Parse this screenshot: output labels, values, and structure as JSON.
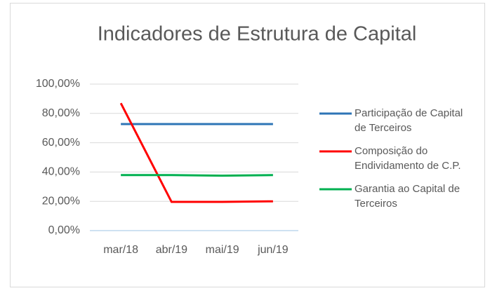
{
  "chart_data": {
    "type": "line",
    "title": "Indicadores de Estrutura de Capital",
    "categories": [
      "mar/18",
      "abr/19",
      "mai/19",
      "jun/19"
    ],
    "series": [
      {
        "name": "Participação de Capital de Terceiros",
        "color": "#2e75b6",
        "values": [
          72.7,
          72.7,
          72.7,
          72.7
        ]
      },
      {
        "name": "Composição do Endividamento de C.P.",
        "color": "#ff0000",
        "values": [
          87.0,
          19.6,
          19.6,
          20.0
        ]
      },
      {
        "name": "Garantia ao Capital de Terceiros",
        "color": "#00b050",
        "values": [
          37.9,
          37.9,
          37.5,
          37.9
        ]
      }
    ],
    "ylim": [
      0,
      100
    ],
    "yticks": [
      {
        "value": 0,
        "label": "0,00%"
      },
      {
        "value": 20,
        "label": "20,00%"
      },
      {
        "value": 40,
        "label": "40,00%"
      },
      {
        "value": 60,
        "label": "60,00%"
      },
      {
        "value": 80,
        "label": "80,00%"
      },
      {
        "value": 100,
        "label": "100,00%"
      }
    ],
    "grid": true,
    "legend": "right"
  }
}
